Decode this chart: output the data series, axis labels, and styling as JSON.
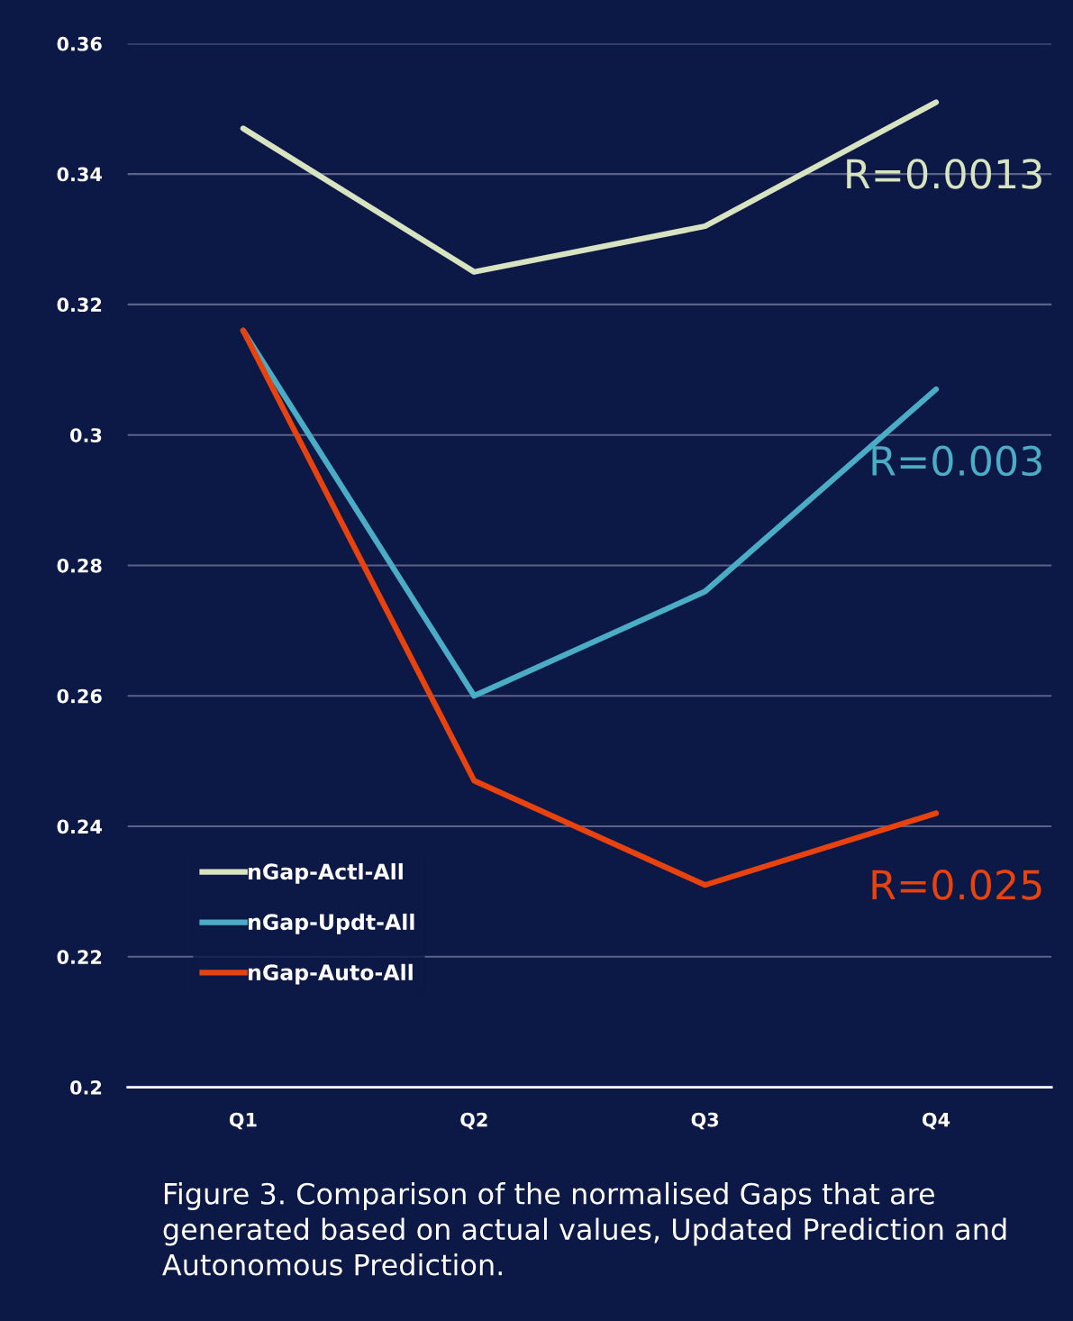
{
  "chart_data": {
    "type": "line",
    "categories": [
      "Q1",
      "Q2",
      "Q3",
      "Q4"
    ],
    "series": [
      {
        "name": "nGap-Actl-All",
        "color": "#d8e3bf",
        "values": [
          0.347,
          0.325,
          0.332,
          0.351
        ]
      },
      {
        "name": "nGap-Updt-All",
        "color": "#4bacc6",
        "values": [
          0.316,
          0.26,
          0.276,
          0.307
        ]
      },
      {
        "name": "nGap-Auto-All",
        "color": "#e8430f",
        "values": [
          0.316,
          0.247,
          0.231,
          0.242
        ]
      }
    ],
    "ylim": [
      0.2,
      0.36
    ],
    "yticks": [
      0.2,
      0.22,
      0.24,
      0.26,
      0.28,
      0.3,
      0.32,
      0.34,
      0.36
    ],
    "grid": "y",
    "legend": "bottom left",
    "marker": "none",
    "line_style": "solid",
    "annotations": [
      "R=0.0013",
      "R=0.003",
      "R=0.025",
      "Figure 3. Comparison of the normalised Gaps that are generated based on actual values, Updated Prediction and Autonomous Prediction."
    ]
  }
}
